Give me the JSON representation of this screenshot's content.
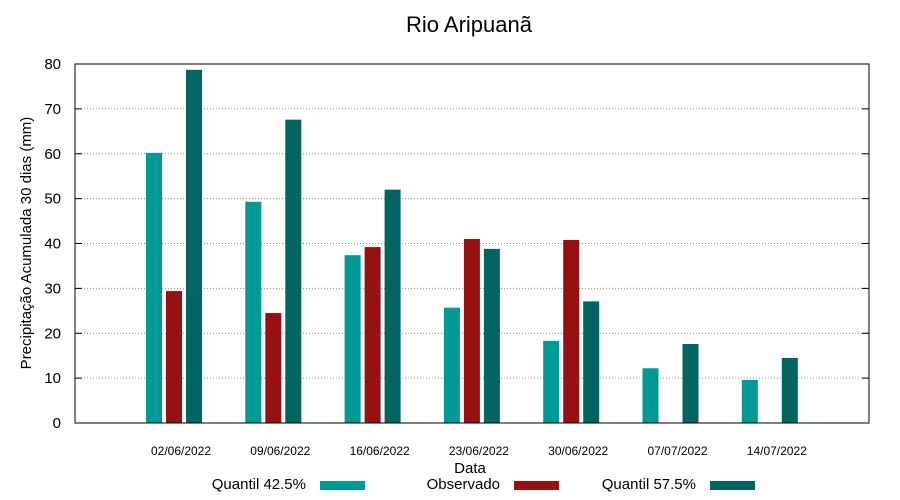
{
  "chart_data": {
    "type": "bar",
    "title": "Rio Aripuanã",
    "xlabel": "Data",
    "ylabel": "Precipitação Acumulada 30 dias (mm)",
    "ylim": [
      0,
      80
    ],
    "yticks": [
      "0",
      "10",
      "20",
      "30",
      "40",
      "50",
      "60",
      "70",
      "80"
    ],
    "grid": true,
    "legend_position": "bottom",
    "categories": [
      "02/06/2022",
      "09/06/2022",
      "16/06/2022",
      "23/06/2022",
      "30/06/2022",
      "07/07/2022",
      "14/07/2022"
    ],
    "series": [
      {
        "name": "Quantil 42.5%",
        "color": "#009a96",
        "values": [
          60.2,
          49.3,
          37.4,
          25.7,
          18.3,
          12.2,
          9.6
        ]
      },
      {
        "name": "Observado",
        "color": "#961111",
        "values": [
          29.4,
          24.5,
          39.2,
          41.0,
          40.8,
          null,
          null
        ]
      },
      {
        "name": "Quantil 57.5%",
        "color": "#006562",
        "values": [
          78.7,
          67.6,
          52.0,
          38.8,
          27.1,
          17.6,
          14.5
        ]
      }
    ]
  }
}
